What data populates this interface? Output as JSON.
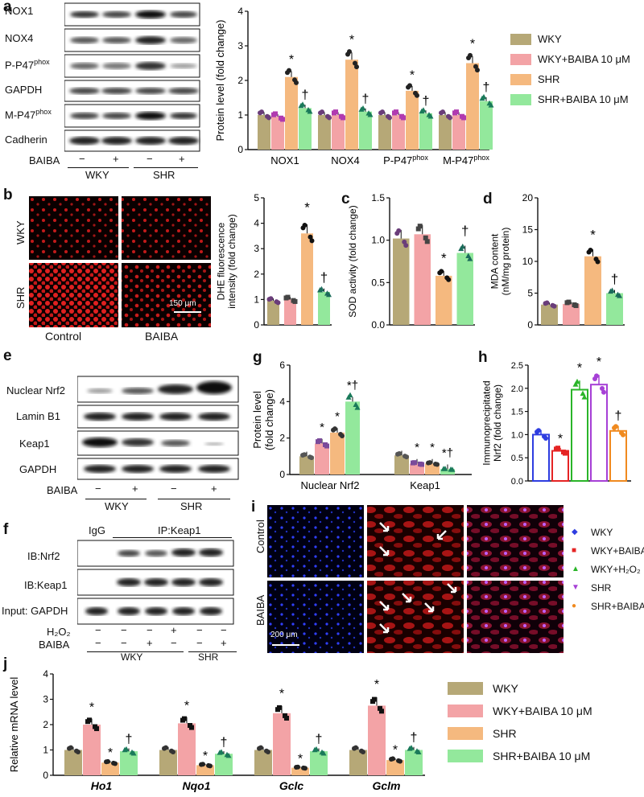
{
  "panels": {
    "a": "a",
    "b": "b",
    "c": "c",
    "d": "d",
    "e": "e",
    "f": "f",
    "g": "g",
    "h": "h",
    "i": "i",
    "j": "j"
  },
  "palette": {
    "wky": "#b6a877",
    "wky_baiba": "#f3a3a6",
    "shr": "#f5b97f",
    "shr_baiba": "#93e89c",
    "h_wky": "#2e3de0",
    "h_wky_baiba": "#e52424",
    "h_wky_h2o2": "#2ab529",
    "h_shr": "#a640d6",
    "h_shr_baiba": "#f08a1f"
  },
  "legend_main": [
    "WKY",
    "WKY+BAIBA 10 μM",
    "SHR",
    "SHR+BAIBA 10 μM"
  ],
  "legend_i": [
    "WKY",
    "WKY+BAIBA",
    "WKY+H₂O₂",
    "SHR",
    "SHR+BAIBA"
  ],
  "blot_a": {
    "rows": [
      "NOX1",
      "NOX4",
      "P-P47phox",
      "GAPDH",
      "M-P47phox",
      "Cadherin"
    ],
    "treatment_label": "BAIBA",
    "signs": [
      "−",
      "+",
      "−",
      "+"
    ],
    "groups": [
      "WKY",
      "SHR"
    ]
  },
  "blot_e": {
    "rows": [
      "Nuclear Nrf2",
      "Lamin B1",
      "Keap1",
      "GAPDH"
    ],
    "treatment_label": "BAIBA",
    "signs": [
      "−",
      "+",
      "−",
      "+"
    ],
    "groups": [
      "WKY",
      "SHR"
    ]
  },
  "blot_f": {
    "top_labels": [
      "IgG",
      "IP:Keap1"
    ],
    "rows": [
      "IB:Nrf2",
      "IB:Keap1",
      "Input: GAPDH"
    ],
    "h2o2_label": "H₂O₂",
    "baiba_label": "BAIBA",
    "h2o2_signs": [
      "−",
      "−",
      "−",
      "+",
      "−",
      "−"
    ],
    "baiba_signs": [
      "−",
      "−",
      "+",
      "−",
      "−",
      "+"
    ],
    "groups": [
      "WKY",
      "SHR"
    ]
  },
  "image_b": {
    "rows": [
      "WKY",
      "SHR"
    ],
    "cols": [
      "Control",
      "BAIBA"
    ],
    "scale": "150 μm"
  },
  "image_i": {
    "rows": [
      "Control",
      "BAIBA"
    ],
    "scale": "200 μm"
  },
  "chart_data": [
    {
      "id": "a",
      "type": "bar",
      "ylabel": "Protein level (fold change)",
      "ylim": [
        0,
        4
      ],
      "yticks": [
        0,
        1,
        2,
        3,
        4
      ],
      "categories": [
        "NOX1",
        "NOX4",
        "P-P47phox",
        "M-P47phox"
      ],
      "series": [
        {
          "name": "WKY",
          "values": [
            1.0,
            1.0,
            1.0,
            1.0
          ]
        },
        {
          "name": "WKY+BAIBA 10 μM",
          "values": [
            0.95,
            1.0,
            1.0,
            1.0
          ]
        },
        {
          "name": "SHR",
          "values": [
            2.1,
            2.6,
            1.7,
            2.5
          ]
        },
        {
          "name": "SHR+BAIBA 10 μM",
          "values": [
            1.2,
            1.1,
            1.05,
            1.4
          ]
        }
      ],
      "marks": [
        "",
        "",
        "*",
        "†"
      ]
    },
    {
      "id": "b",
      "type": "bar",
      "ylabel": "DHE fluorescence intensity (fold change)",
      "ylim": [
        0,
        5
      ],
      "yticks": [
        0,
        1,
        2,
        3,
        4,
        5
      ],
      "categories": [
        "WKY",
        "WKY+BAIBA",
        "SHR",
        "SHR+BAIBA"
      ],
      "values": [
        0.95,
        1.0,
        3.6,
        1.3
      ],
      "marks": [
        "",
        "",
        "*",
        "†"
      ]
    },
    {
      "id": "c",
      "type": "bar",
      "ylabel": "SOD activity (fold change)",
      "ylim": [
        0,
        1.5
      ],
      "yticks": [
        0,
        0.5,
        1.0,
        1.5
      ],
      "categories": [
        "WKY",
        "WKY+BAIBA",
        "SHR",
        "SHR+BAIBA"
      ],
      "values": [
        1.02,
        1.07,
        0.58,
        0.85
      ],
      "marks": [
        "",
        "",
        "*",
        "†"
      ]
    },
    {
      "id": "d",
      "type": "bar",
      "ylabel": "MDA content (nM/mg protein)",
      "ylim": [
        0,
        20
      ],
      "yticks": [
        0,
        5,
        10,
        15,
        20
      ],
      "categories": [
        "WKY",
        "WKY+BAIBA",
        "SHR",
        "SHR+BAIBA"
      ],
      "values": [
        3.2,
        3.3,
        10.8,
        5.0
      ],
      "marks": [
        "",
        "",
        "*",
        "†"
      ]
    },
    {
      "id": "g",
      "type": "bar",
      "ylabel": "Protein level (fold change)",
      "ylim": [
        0,
        6
      ],
      "yticks": [
        0,
        2,
        4,
        6
      ],
      "categories": [
        "Nuclear Nrf2",
        "Keap1"
      ],
      "series": [
        {
          "name": "WKY",
          "values": [
            1.0,
            1.05
          ]
        },
        {
          "name": "WKY+BAIBA 10 μM",
          "values": [
            1.7,
            0.6
          ]
        },
        {
          "name": "SHR",
          "values": [
            2.3,
            0.6
          ]
        },
        {
          "name": "SHR+BAIBA 10 μM",
          "values": [
            4.0,
            0.3
          ]
        }
      ],
      "marks": [
        [
          "",
          "*",
          "*",
          "*†"
        ],
        [
          "",
          "*",
          "*",
          "*†"
        ]
      ]
    },
    {
      "id": "h",
      "type": "bar",
      "ylabel": "Immunoprecipitated Nrf2 (fold change)",
      "ylim": [
        0,
        2.5
      ],
      "yticks": [
        0,
        0.5,
        1.0,
        1.5,
        2.0,
        2.5
      ],
      "categories": [
        "WKY",
        "WKY+BAIBA",
        "WKY+H₂O₂",
        "SHR",
        "SHR+BAIBA"
      ],
      "values": [
        1.0,
        0.65,
        1.97,
        2.08,
        1.08
      ],
      "marks": [
        "",
        "*",
        "*",
        "*",
        "†"
      ]
    },
    {
      "id": "j",
      "type": "bar",
      "ylabel": "Relative mRNA level",
      "ylim": [
        0,
        4
      ],
      "yticks": [
        0,
        1,
        2,
        3,
        4
      ],
      "categories": [
        "Ho1",
        "Nqo1",
        "Gclc",
        "Gclm"
      ],
      "series": [
        {
          "name": "WKY",
          "values": [
            1.0,
            1.0,
            1.0,
            1.0
          ]
        },
        {
          "name": "WKY+BAIBA 10 μM",
          "values": [
            2.0,
            2.05,
            2.45,
            2.75
          ]
        },
        {
          "name": "SHR",
          "values": [
            0.5,
            0.4,
            0.3,
            0.6
          ]
        },
        {
          "name": "SHR+BAIBA 10 μM",
          "values": [
            0.95,
            0.85,
            0.95,
            1.0
          ]
        }
      ],
      "marks": [
        [
          "",
          "*",
          "*",
          "†"
        ],
        [
          "",
          "*",
          "*",
          "†"
        ],
        [
          "",
          "*",
          "*",
          "†"
        ],
        [
          "",
          "*",
          "*",
          "†"
        ]
      ]
    }
  ]
}
